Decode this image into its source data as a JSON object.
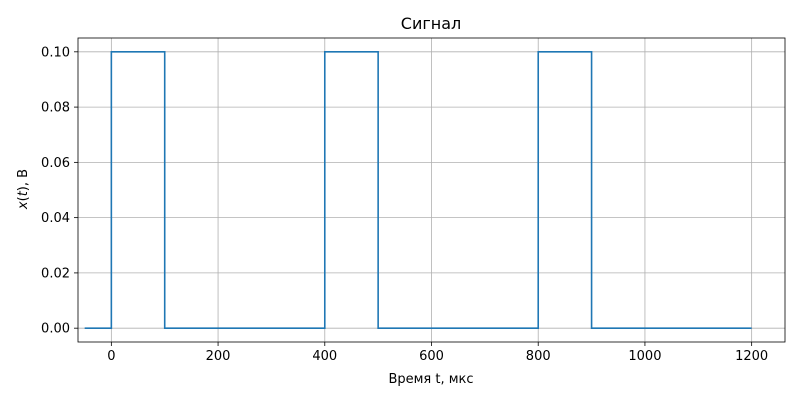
{
  "chart_data": {
    "type": "line",
    "title": "Сигнал",
    "xlabel": "Время t, мкс",
    "ylabel": {
      "italic_part": "x",
      "paren_open": "(",
      "italic_var": "t",
      "suffix": "), В"
    },
    "xlim": [
      -62.5,
      1262.5
    ],
    "ylim": [
      -0.005,
      0.105
    ],
    "x_ticks": [
      0,
      200,
      400,
      600,
      800,
      1000,
      1200
    ],
    "x_tick_labels": [
      "0",
      "200",
      "400",
      "600",
      "800",
      "1000",
      "1200"
    ],
    "y_ticks": [
      0.0,
      0.02,
      0.04,
      0.06,
      0.08,
      0.1
    ],
    "y_tick_labels": [
      "0.00",
      "0.02",
      "0.04",
      "0.06",
      "0.08",
      "0.10"
    ],
    "grid": true,
    "line_color": "#1f77b4",
    "grid_color": "#b0b0b0",
    "series": [
      {
        "x": [
          -50,
          0,
          0,
          100,
          100,
          400,
          400,
          500,
          500,
          800,
          800,
          900,
          900,
          1200
        ],
        "y": [
          0,
          0,
          0.1,
          0.1,
          0,
          0,
          0.1,
          0.1,
          0,
          0,
          0.1,
          0.1,
          0,
          0
        ]
      }
    ]
  }
}
